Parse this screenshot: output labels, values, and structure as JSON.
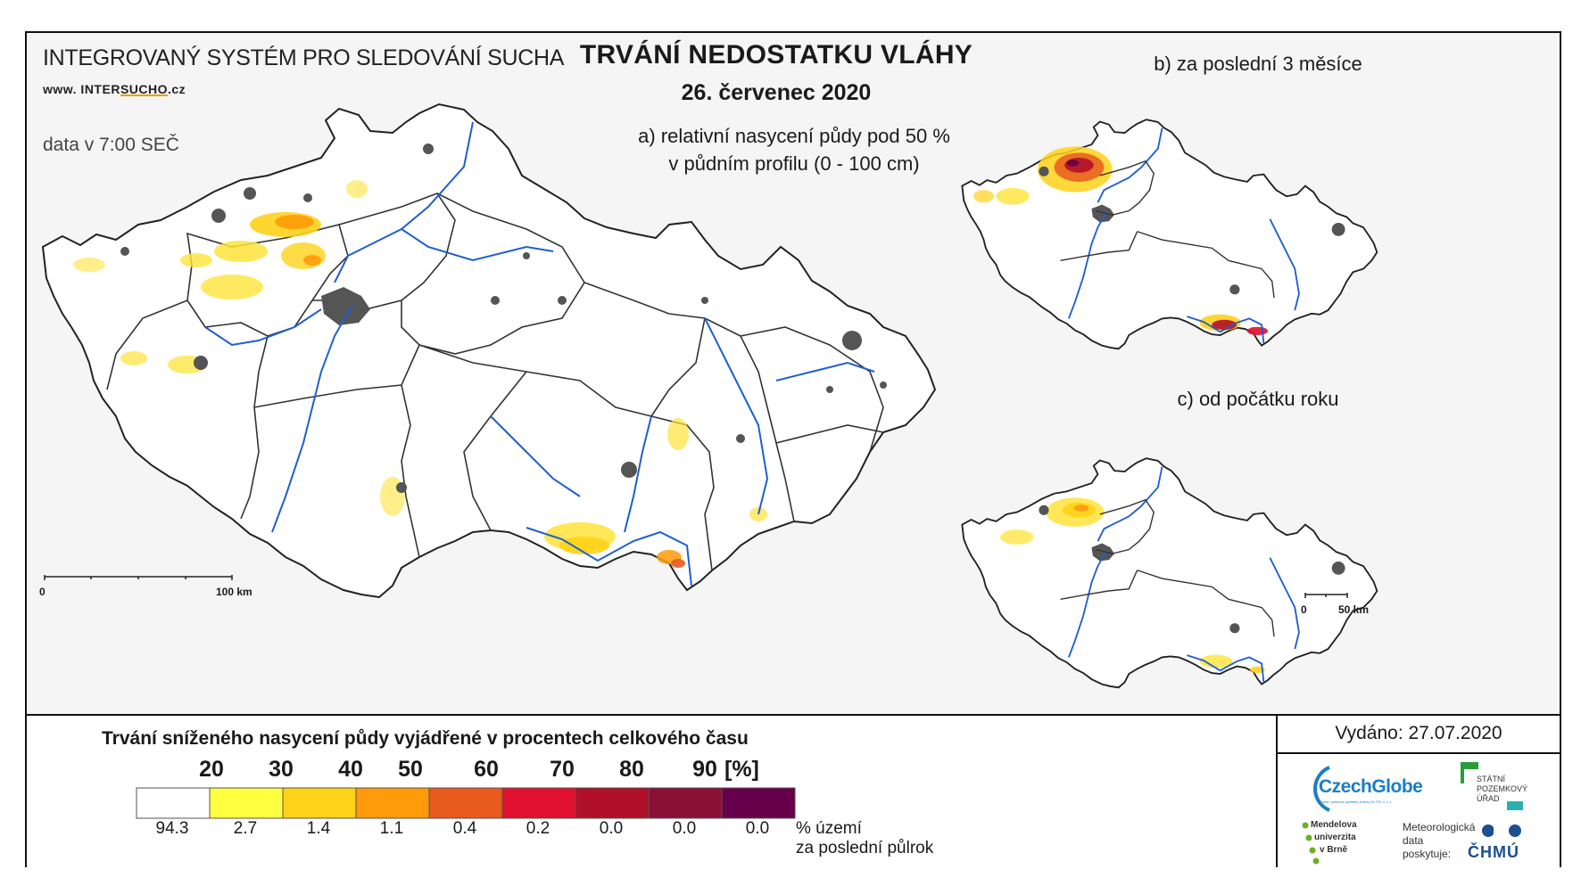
{
  "header": {
    "system_title": "INTEGROVANÝ SYSTÉM PRO SLEDOVÁNÍ SUCHA",
    "url_prefix": "www. INTER",
    "url_brand": "SUCHO",
    "url_suffix": ".cz",
    "data_time": "data v 7:00 SEČ",
    "main_title": "TRVÁNÍ NEDOSTATKU VLÁHY",
    "main_date": "26. červenec 2020"
  },
  "panels": {
    "a_line1": "a) relativní nasycení půdy pod 50 %",
    "a_line2": "v půdním profilu (0 - 100 cm)",
    "b_title": "b) za poslední 3 měsíce",
    "c_title": "c) od počátku roku"
  },
  "scalebars": {
    "main_zero": "0",
    "main_end": "100 km",
    "small_zero": "0",
    "small_end": "50 km"
  },
  "legend": {
    "title": "Trvání sníženého nasycení půdy vyjádřené v procentech celkového času",
    "unit": "[%]",
    "territory_line1": "% území",
    "territory_line2": "za poslední půlrok",
    "classes": [
      {
        "color": "#ffffff",
        "share": "94.3"
      },
      {
        "color": "#ffff40",
        "share": "2.7"
      },
      {
        "color": "#ffd21a",
        "share": "1.4"
      },
      {
        "color": "#ff9a0a",
        "share": "1.1"
      },
      {
        "color": "#e85a1e",
        "share": "0.4"
      },
      {
        "color": "#e0102e",
        "share": "0.2"
      },
      {
        "color": "#b0102a",
        "share": "0.0"
      },
      {
        "color": "#8a1036",
        "share": "0.0"
      },
      {
        "color": "#66004a",
        "share": "0.0"
      }
    ],
    "thresholds": [
      "20",
      "30",
      "40",
      "50",
      "60",
      "70",
      "80",
      "90"
    ]
  },
  "issued": {
    "label": "Vydáno: 27.07.2020"
  },
  "logos": {
    "czechglobe": "CzechGlobe",
    "czechglobe_sub": "Ústav výzkumu globální změny AV ČR, v. v. i.",
    "spu_line1": "STÁTNÍ",
    "spu_line2": "POZEMKOVÝ",
    "spu_line3": "ÚŘAD",
    "mu_line1": "Mendelova",
    "mu_line2": "univerzita",
    "mu_line3": "v Brně",
    "meteo_line1": "Meteorologická",
    "meteo_line2": "data",
    "meteo_line3": "poskytuje:",
    "chmu": "ČHMÚ"
  },
  "colors": {
    "river": "#1f5fd0",
    "border": "#222222",
    "urban": "#555555",
    "drought_light": "#ffe33a",
    "drought_mid": "#ffa510",
    "drought_high": "#d4302a",
    "drought_extreme": "#6b0f55"
  }
}
